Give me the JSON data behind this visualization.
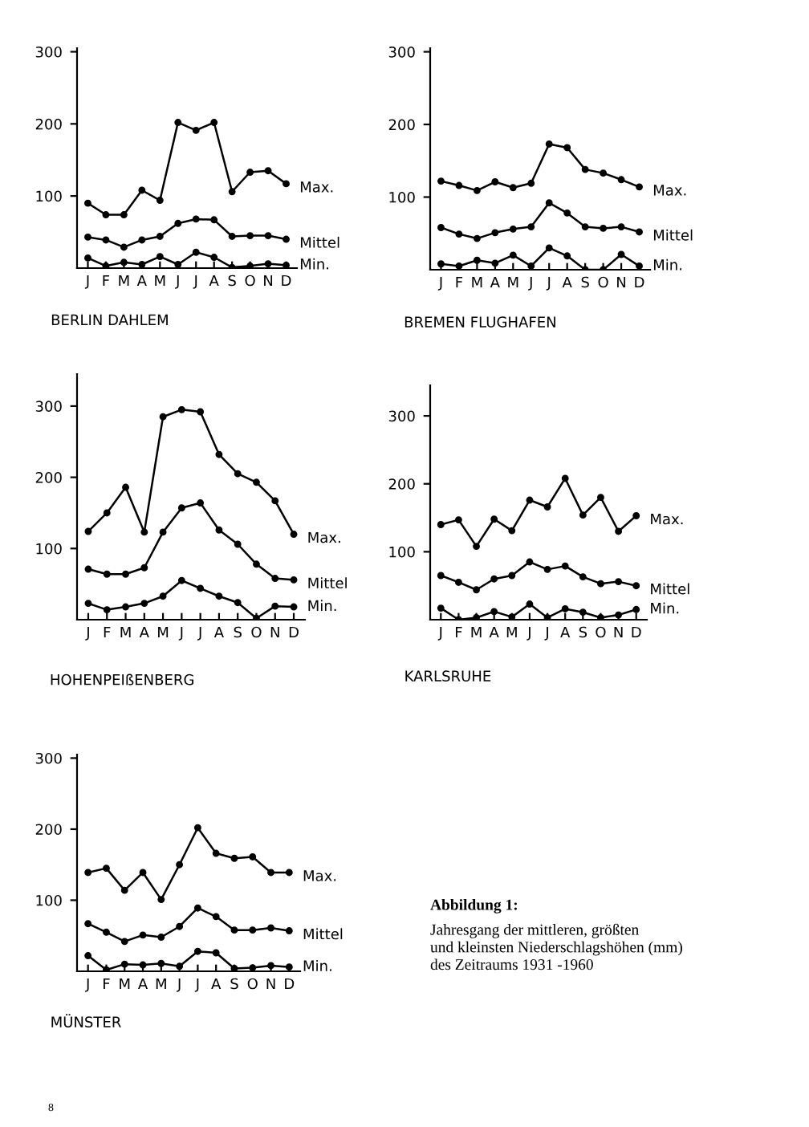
{
  "chart_data": [
    {
      "type": "line",
      "title": "BERLIN DAHLEM",
      "categories": [
        "J",
        "F",
        "M",
        "A",
        "M",
        "J",
        "J",
        "A",
        "S",
        "O",
        "N",
        "D"
      ],
      "ylim": [
        0,
        305
      ],
      "yticks": [
        100,
        200,
        300
      ],
      "marker": "circle",
      "legend": false,
      "grid": false,
      "series": [
        {
          "name": "Max.",
          "color": "#000000",
          "values": [
            90,
            74,
            74,
            108,
            94,
            202,
            191,
            202,
            106,
            133,
            135,
            117
          ]
        },
        {
          "name": "Mittel",
          "color": "#000000",
          "values": [
            43,
            39,
            29,
            39,
            44,
            62,
            68,
            67,
            44,
            45,
            45,
            40
          ]
        },
        {
          "name": "Min.",
          "color": "#000000",
          "values": [
            14,
            3,
            8,
            5,
            16,
            5,
            22,
            15,
            1,
            3,
            6,
            4
          ]
        }
      ]
    },
    {
      "type": "line",
      "title": "BREMEN FLUGHAFEN",
      "categories": [
        "J",
        "F",
        "M",
        "A",
        "M",
        "J",
        "J",
        "A",
        "S",
        "O",
        "N",
        "D"
      ],
      "ylim": [
        0,
        305
      ],
      "yticks": [
        100,
        200,
        300
      ],
      "marker": "circle",
      "legend": false,
      "grid": false,
      "series": [
        {
          "name": "Max.",
          "color": "#000000",
          "values": [
            122,
            116,
            109,
            121,
            113,
            119,
            173,
            168,
            138,
            133,
            124,
            114
          ]
        },
        {
          "name": "Mittel",
          "color": "#000000",
          "values": [
            58,
            49,
            43,
            51,
            56,
            59,
            92,
            78,
            59,
            57,
            59,
            52
          ]
        },
        {
          "name": "Min.",
          "color": "#000000",
          "values": [
            8,
            5,
            13,
            9,
            20,
            5,
            30,
            19,
            0,
            0,
            21,
            5
          ]
        }
      ]
    },
    {
      "type": "line",
      "title": "HOHENPEIßENBERG",
      "categories": [
        "J",
        "F",
        "M",
        "A",
        "M",
        "J",
        "J",
        "A",
        "S",
        "O",
        "N",
        "D"
      ],
      "ylim": [
        0,
        345
      ],
      "yticks": [
        100,
        200,
        300
      ],
      "marker": "circle",
      "legend": false,
      "grid": false,
      "series": [
        {
          "name": "Max.",
          "color": "#000000",
          "values": [
            124,
            150,
            186,
            123,
            285,
            295,
            292,
            232,
            205,
            193,
            167,
            120
          ]
        },
        {
          "name": "Mittel",
          "color": "#000000",
          "values": [
            71,
            64,
            64,
            73,
            123,
            157,
            164,
            126,
            106,
            78,
            58,
            56
          ]
        },
        {
          "name": "Min.",
          "color": "#000000",
          "values": [
            23,
            14,
            18,
            23,
            33,
            55,
            44,
            33,
            24,
            2,
            19,
            18
          ]
        }
      ]
    },
    {
      "type": "line",
      "title": "KARLSRUHE",
      "categories": [
        "J",
        "F",
        "M",
        "A",
        "M",
        "J",
        "J",
        "A",
        "S",
        "O",
        "N",
        "D"
      ],
      "ylim": [
        0,
        345
      ],
      "yticks": [
        100,
        200,
        300
      ],
      "marker": "circle",
      "legend": false,
      "grid": false,
      "series": [
        {
          "name": "Max.",
          "color": "#000000",
          "values": [
            140,
            147,
            108,
            148,
            131,
            176,
            166,
            208,
            154,
            180,
            130,
            153
          ]
        },
        {
          "name": "Mittel",
          "color": "#000000",
          "values": [
            65,
            55,
            44,
            60,
            65,
            85,
            74,
            79,
            63,
            53,
            56,
            50
          ]
        },
        {
          "name": "Min.",
          "color": "#000000",
          "values": [
            17,
            0,
            3,
            12,
            4,
            23,
            3,
            16,
            11,
            3,
            7,
            15
          ]
        }
      ]
    },
    {
      "type": "line",
      "title": "MÜNSTER",
      "categories": [
        "J",
        "F",
        "M",
        "A",
        "M",
        "J",
        "J",
        "A",
        "S",
        "O",
        "N",
        "D"
      ],
      "ylim": [
        0,
        305
      ],
      "yticks": [
        100,
        200,
        300
      ],
      "marker": "circle",
      "legend": false,
      "grid": false,
      "series": [
        {
          "name": "Max.",
          "color": "#000000",
          "values": [
            139,
            145,
            114,
            139,
            101,
            150,
            202,
            166,
            159,
            161,
            139,
            139
          ]
        },
        {
          "name": "Mittel",
          "color": "#000000",
          "values": [
            67,
            55,
            42,
            51,
            48,
            63,
            89,
            77,
            58,
            58,
            61,
            57
          ]
        },
        {
          "name": "Min.",
          "color": "#000000",
          "values": [
            22,
            2,
            10,
            9,
            11,
            7,
            28,
            26,
            4,
            5,
            8,
            6
          ]
        }
      ]
    },
    {
      "type": "other",
      "title": "Abbildung 1:",
      "annotations": [
        "Jahresgang der mittleren, größten\nund kleinsten Niederschlagshöhen (mm)\ndes Zeitraums 1931 -1960",
        "8"
      ]
    }
  ]
}
